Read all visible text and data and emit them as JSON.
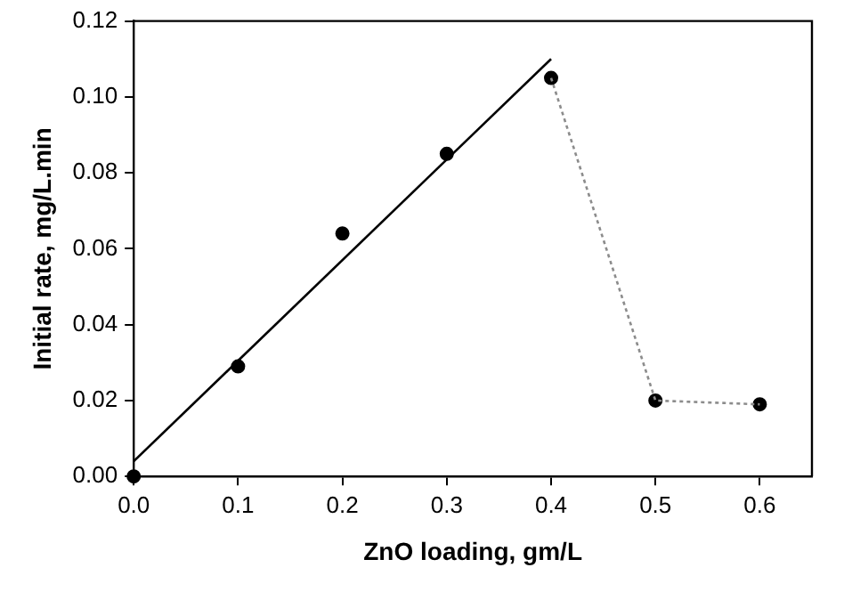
{
  "chart_data": {
    "type": "scatter",
    "xlabel": "ZnO loading, gm/L",
    "ylabel": "Initial rate, mg/L.min",
    "xlim": [
      0,
      0.65
    ],
    "xticks": [
      {
        "value": 0,
        "label": "0.0"
      },
      0.1,
      0.2,
      0.3,
      0.4,
      0.5,
      0.6
    ],
    "ylim": [
      0,
      0.12
    ],
    "yticks": [
      {
        "value": 0,
        "label": "0.00"
      },
      0.02,
      0.04,
      0.06,
      0.08,
      {
        "value": 0.1,
        "label": "0.10"
      },
      {
        "value": 0.12,
        "label": "0.12"
      }
    ],
    "grid": false,
    "series": [
      {
        "type": "line",
        "color": "#000000",
        "marker": "none",
        "line_style": "solid",
        "x": [
          0,
          0.4
        ],
        "values": [
          0.004,
          0.11
        ]
      },
      {
        "type": "line",
        "color": "#8c8c8c",
        "marker": "none",
        "line_style": "dotted",
        "x": [
          0.4,
          0.5,
          0.6
        ],
        "values": [
          0.105,
          0.02,
          0.019
        ]
      },
      {
        "color": "#000000",
        "marker": "circle",
        "x": [
          0,
          0.1,
          0.2,
          0.3,
          0.4,
          0.5,
          0.6
        ],
        "values": [
          0,
          0.029,
          0.064,
          0.085,
          0.105,
          0.02,
          0.019
        ]
      }
    ]
  }
}
